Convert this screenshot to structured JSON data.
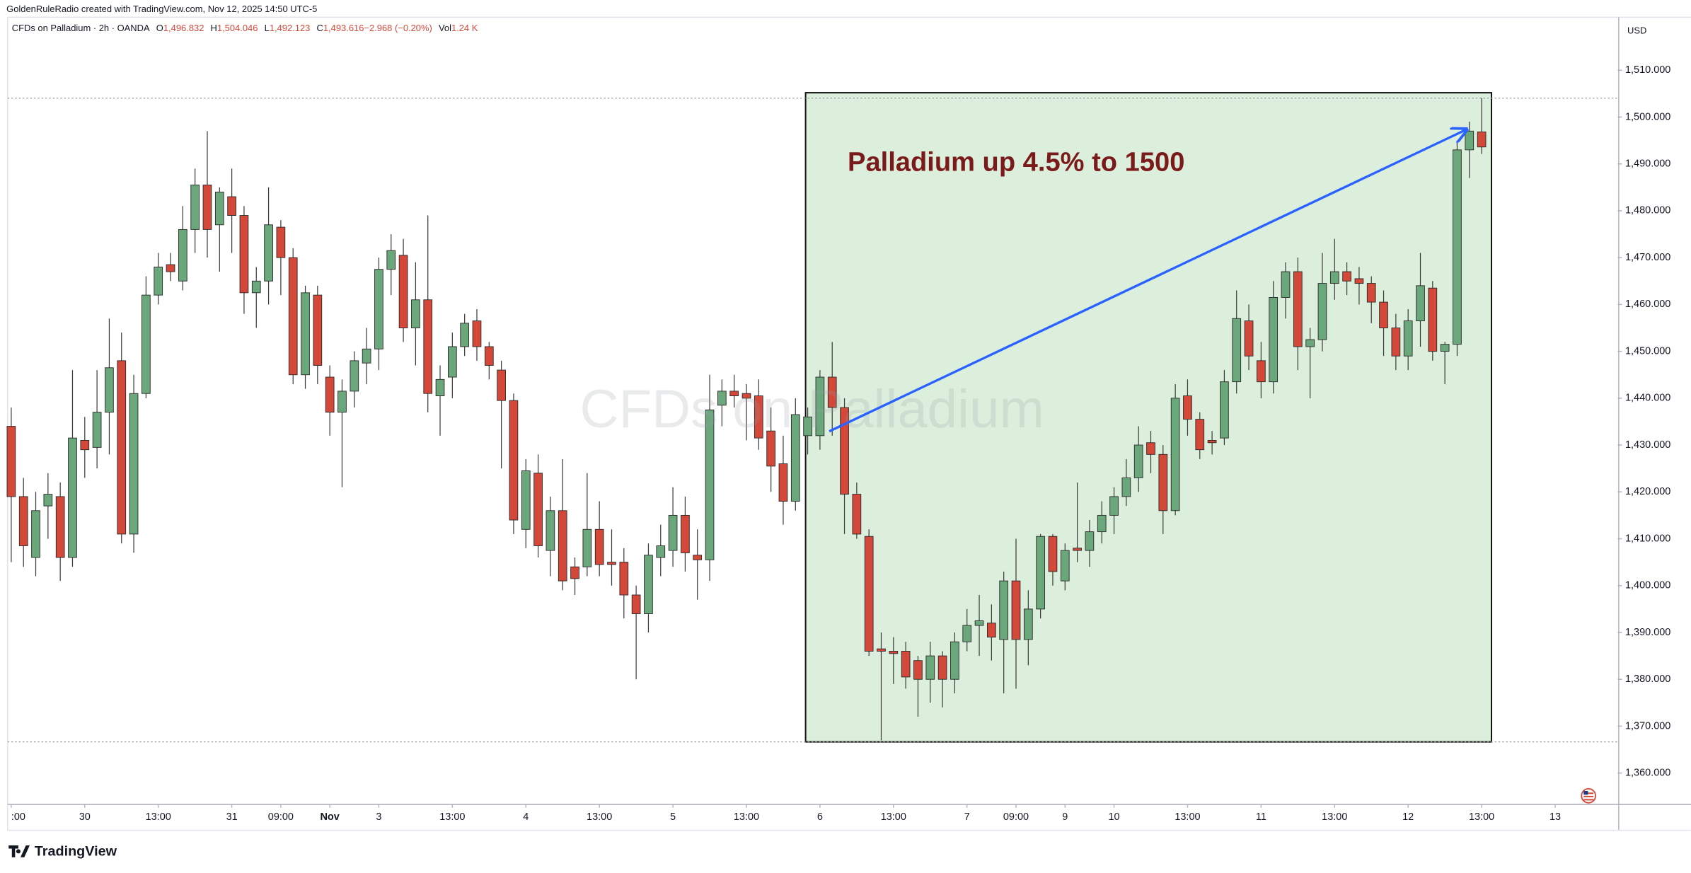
{
  "credit": "GoldenRuleRadio created with TradingView.com, Nov 12, 2025 14:50 UTC-5",
  "logo": "TradingView",
  "chart_data": {
    "type": "candlestick",
    "symbol": "CFDs on Palladium · 2h · OANDA",
    "ohlc_legend": [
      {
        "key": "O",
        "value": "1,496.832"
      },
      {
        "key": "H",
        "value": "1,504.046"
      },
      {
        "key": "L",
        "value": "1,492.123"
      },
      {
        "key": "C",
        "value": "1,493.616"
      },
      {
        "key": "",
        "value": "−2.968 (−0.20%)"
      },
      {
        "key": "Vol",
        "value": "1.24 K"
      }
    ],
    "watermark": "CFDs on Palladium",
    "annotation": "Palladium up 4.5% to 1500",
    "currency": "USD",
    "up_color": "#6aa77b",
    "down_color": "#d4483a",
    "grid": false,
    "open": [
      1434,
      1419,
      1406,
      1417,
      1419,
      1406,
      1431,
      1429.5,
      1437,
      1448,
      1411,
      1441,
      1462,
      1468.5,
      1465,
      1476,
      1485.5,
      1477,
      1483,
      1479,
      1462.5,
      1465,
      1476.5,
      1470,
      1445,
      1462,
      1444.5,
      1437,
      1441.5,
      1447.5,
      1450.5,
      1467.5,
      1470.5,
      1455,
      1461,
      1440.5,
      1444.5,
      1451,
      1456.5,
      1451,
      1446,
      1439.5,
      1412,
      1424,
      1407.5,
      1416,
      1404,
      1404,
      1412,
      1405,
      1405,
      1398,
      1394,
      1406,
      1407.5,
      1415,
      1406.5,
      1405.5,
      1438.5,
      1441.5,
      1441,
      1440.5,
      1433,
      1426,
      1418,
      1432,
      1432,
      1444.5,
      1438,
      1419.5,
      1410.5,
      1386.5,
      1386,
      1386,
      1384,
      1380,
      1385,
      1380,
      1388,
      1391.5,
      1392,
      1388.5,
      1401,
      1388.5,
      1395,
      1410.5,
      1401,
      1408,
      1407.5,
      1411.5,
      1415,
      1419,
      1423,
      1430.5,
      1428,
      1416,
      1440.5,
      1435.5,
      1431,
      1431.5,
      1443.5,
      1456.5,
      1448,
      1443.5,
      1461.5,
      1467,
      1451,
      1452.5,
      1464.5,
      1467,
      1465.5,
      1464.5,
      1460.5,
      1455,
      1449,
      1456.5,
      1463.5,
      1450,
      1451.5,
      1493,
      1496.832
    ],
    "high": [
      1438,
      1423,
      1420,
      1424,
      1422,
      1446,
      1436,
      1446,
      1457,
      1454,
      1445,
      1466,
      1471,
      1471,
      1481,
      1489,
      1497,
      1485,
      1489,
      1481,
      1468,
      1485,
      1478,
      1472,
      1464,
      1464,
      1447,
      1444,
      1450,
      1455,
      1470,
      1475,
      1474,
      1469,
      1479,
      1447,
      1454,
      1458,
      1459,
      1452,
      1448,
      1441,
      1427,
      1428,
      1419,
      1427,
      1406,
      1424,
      1418,
      1412,
      1408,
      1400,
      1409,
      1413,
      1421,
      1419,
      1412,
      1445,
      1444,
      1445,
      1443,
      1444,
      1438,
      1432,
      1440,
      1438,
      1446,
      1452,
      1440,
      1422,
      1412,
      1390,
      1389,
      1388,
      1385,
      1388,
      1386,
      1390,
      1395,
      1398,
      1396,
      1403,
      1410,
      1399,
      1411,
      1411,
      1409,
      1422,
      1414,
      1418,
      1421,
      1427,
      1434,
      1433,
      1430,
      1443,
      1444,
      1437,
      1433,
      1446,
      1463,
      1460,
      1452,
      1465,
      1469,
      1470,
      1455,
      1471,
      1474,
      1469,
      1468,
      1466,
      1463,
      1458,
      1459,
      1471,
      1465,
      1452,
      1495,
      1499,
      1504.046
    ],
    "low": [
      1405,
      1404,
      1402,
      1410,
      1401,
      1404,
      1423,
      1425,
      1428,
      1409,
      1407,
      1440,
      1460,
      1465,
      1463,
      1471,
      1470,
      1467,
      1471,
      1458,
      1455,
      1460,
      1462,
      1443,
      1442,
      1443,
      1432,
      1421,
      1438,
      1443,
      1446,
      1462,
      1452,
      1447,
      1437,
      1432,
      1440,
      1449,
      1448,
      1444,
      1425,
      1411,
      1408,
      1406,
      1402,
      1399,
      1398,
      1402,
      1402,
      1400,
      1393,
      1380,
      1390,
      1402,
      1404,
      1403,
      1397,
      1401,
      1434,
      1438,
      1431,
      1429,
      1420,
      1413,
      1416,
      1428,
      1429,
      1432,
      1411,
      1410,
      1385,
      1367,
      1379,
      1378,
      1372,
      1375,
      1374,
      1377,
      1386,
      1385,
      1384,
      1377,
      1378,
      1383,
      1393,
      1400,
      1399,
      1405,
      1404,
      1409,
      1411,
      1417,
      1420,
      1424,
      1411,
      1415,
      1432,
      1427,
      1428,
      1430,
      1441,
      1446,
      1440,
      1441,
      1457,
      1446,
      1440,
      1450,
      1461,
      1462,
      1460,
      1456,
      1449,
      1446,
      1446,
      1451,
      1448,
      1443,
      1449,
      1487,
      1492.123
    ],
    "close": [
      1419,
      1408.5,
      1416,
      1419.5,
      1406,
      1431.5,
      1429,
      1437,
      1446.5,
      1411,
      1441,
      1462,
      1468,
      1467,
      1476,
      1485.5,
      1476,
      1484,
      1479,
      1462.5,
      1465,
      1477,
      1470,
      1445,
      1462.5,
      1447,
      1437,
      1441.5,
      1448,
      1450.5,
      1467.5,
      1471.5,
      1455,
      1461,
      1441,
      1444,
      1451,
      1456,
      1451,
      1447,
      1439.5,
      1414,
      1424.5,
      1408.5,
      1416,
      1401,
      1401.5,
      1412,
      1404.5,
      1404.5,
      1398,
      1394,
      1406.5,
      1408.5,
      1415,
      1407,
      1405.5,
      1437.5,
      1441.5,
      1440.5,
      1440,
      1431.5,
      1425.5,
      1418,
      1436.5,
      1436,
      1444.5,
      1438,
      1419.5,
      1411,
      1386,
      1386,
      1385.5,
      1380.5,
      1380,
      1385,
      1380,
      1388,
      1391.5,
      1392.5,
      1389,
      1401,
      1388.5,
      1395,
      1410.5,
      1403,
      1407.5,
      1407.5,
      1411.5,
      1415,
      1419,
      1423,
      1430,
      1428,
      1416,
      1440,
      1435.5,
      1429,
      1430.5,
      1443.5,
      1457,
      1449,
      1443.5,
      1461.5,
      1467,
      1451,
      1452.5,
      1464.5,
      1467,
      1465,
      1464.5,
      1460.5,
      1455,
      1449,
      1456.5,
      1464,
      1450,
      1451.5,
      1493,
      1497,
      1493.616
    ],
    "xlim": [
      -0.3,
      131.1
    ],
    "xticks": [
      {
        "value": 0,
        "label": ":00"
      },
      {
        "value": 6,
        "label": "30"
      },
      {
        "value": 12,
        "label": "13:00"
      },
      {
        "value": 18,
        "label": "31"
      },
      {
        "value": 22,
        "label": "09:00"
      },
      {
        "value": 26,
        "label": "Nov"
      },
      {
        "value": 30,
        "label": "3"
      },
      {
        "value": 36,
        "label": "13:00"
      },
      {
        "value": 42,
        "label": "4"
      },
      {
        "value": 48,
        "label": "13:00"
      },
      {
        "value": 54,
        "label": "5"
      },
      {
        "value": 60,
        "label": "13:00"
      },
      {
        "value": 66,
        "label": "6"
      },
      {
        "value": 72,
        "label": "13:00"
      },
      {
        "value": 78,
        "label": "7"
      },
      {
        "value": 82,
        "label": "09:00"
      },
      {
        "value": 86,
        "label": "9"
      },
      {
        "value": 90,
        "label": "10"
      },
      {
        "value": 96,
        "label": "13:00"
      },
      {
        "value": 102,
        "label": "11"
      },
      {
        "value": 108,
        "label": "13:00"
      },
      {
        "value": 114,
        "label": "12"
      },
      {
        "value": 120,
        "label": "13:00"
      },
      {
        "value": 126,
        "label": "13"
      }
    ],
    "ylim": [
      1353.3,
      1521.3
    ],
    "yticks": [
      {
        "value": 1360,
        "label": "1,360.000"
      },
      {
        "value": 1370,
        "label": "1,370.000"
      },
      {
        "value": 1380,
        "label": "1,380.000"
      },
      {
        "value": 1390,
        "label": "1,390.000"
      },
      {
        "value": 1400,
        "label": "1,400.000"
      },
      {
        "value": 1410,
        "label": "1,410.000"
      },
      {
        "value": 1420,
        "label": "1,420.000"
      },
      {
        "value": 1430,
        "label": "1,430.000"
      },
      {
        "value": 1440,
        "label": "1,440.000"
      },
      {
        "value": 1450,
        "label": "1,450.000"
      },
      {
        "value": 1460,
        "label": "1,460.000"
      },
      {
        "value": 1470,
        "label": "1,470.000"
      },
      {
        "value": 1480,
        "label": "1,480.000"
      },
      {
        "value": 1490,
        "label": "1,490.000"
      },
      {
        "value": 1500,
        "label": "1,500.000"
      },
      {
        "value": 1510,
        "label": "1,510.000"
      }
    ]
  }
}
